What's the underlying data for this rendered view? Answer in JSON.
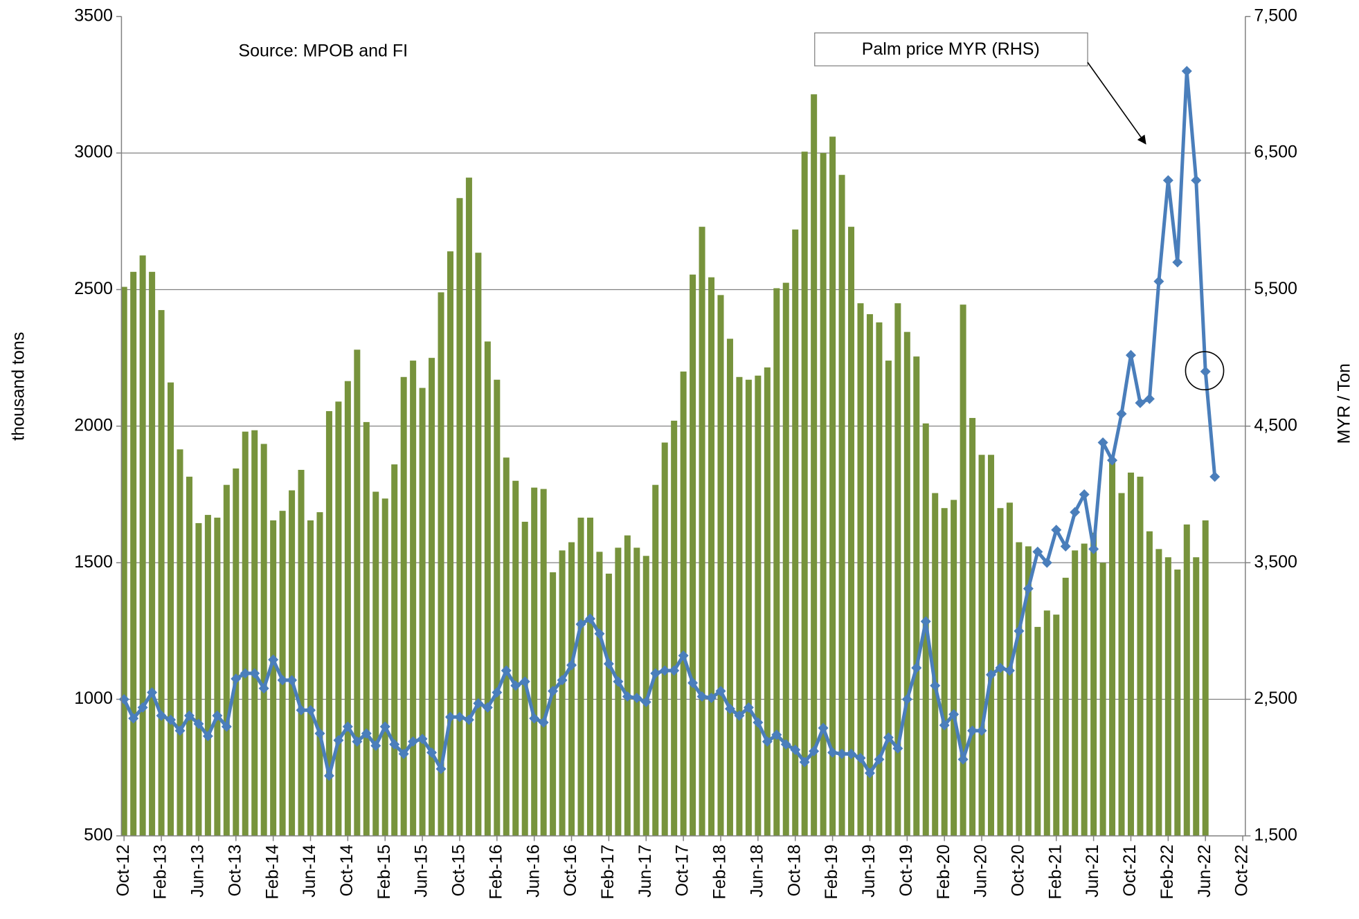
{
  "chart_data": {
    "type": "bar-line",
    "source": "Source: MPOB and FI",
    "callout": "Palm price MYR (RHS)",
    "y_label": "thousand tons",
    "y2_label": "MYR / Ton",
    "categories": [
      "Oct-12",
      null,
      null,
      null,
      "Feb-13",
      null,
      null,
      null,
      "Jun-13",
      null,
      null,
      null,
      "Oct-13",
      null,
      null,
      null,
      "Feb-14",
      null,
      null,
      null,
      "Jun-14",
      null,
      null,
      null,
      "Oct-14",
      null,
      null,
      null,
      "Feb-15",
      null,
      null,
      null,
      "Jun-15",
      null,
      null,
      null,
      "Oct-15",
      null,
      null,
      null,
      "Feb-16",
      null,
      null,
      null,
      "Jun-16",
      null,
      null,
      null,
      "Oct-16",
      null,
      null,
      null,
      "Feb-17",
      null,
      null,
      null,
      "Jun-17",
      null,
      null,
      null,
      "Oct-17",
      null,
      null,
      null,
      "Feb-18",
      null,
      null,
      null,
      "Jun-18",
      null,
      null,
      null,
      "Oct-18",
      null,
      null,
      null,
      "Feb-19",
      null,
      null,
      null,
      "Jun-19",
      null,
      null,
      null,
      "Oct-19",
      null,
      null,
      null,
      "Feb-20",
      null,
      null,
      null,
      "Jun-20",
      null,
      null,
      null,
      "Oct-20",
      null,
      null,
      null,
      "Feb-21",
      null,
      null,
      null,
      "Jun-21",
      null,
      null,
      null,
      "Oct-21",
      null,
      null,
      null,
      "Feb-22",
      null,
      null,
      null,
      "Jun-22",
      null,
      null,
      null,
      "Oct-22"
    ],
    "series": [
      {
        "type": "bar",
        "color": "#77933c",
        "values": [
          2510,
          2565,
          2625,
          2565,
          2425,
          2160,
          1915,
          1815,
          1645,
          1675,
          1665,
          1785,
          1845,
          1980,
          1985,
          1935,
          1655,
          1690,
          1765,
          1840,
          1655,
          1685,
          2055,
          2090,
          2165,
          2280,
          2015,
          1760,
          1735,
          1860,
          2180,
          2240,
          2140,
          2250,
          2490,
          2640,
          2835,
          2910,
          2635,
          2310,
          2170,
          1885,
          1800,
          1650,
          1775,
          1770,
          1465,
          1545,
          1575,
          1665,
          1665,
          1540,
          1460,
          1555,
          1600,
          1555,
          1525,
          1785,
          1940,
          2020,
          2200,
          2555,
          2730,
          2545,
          2480,
          2320,
          2180,
          2170,
          2185,
          2215,
          2505,
          2525,
          2720,
          3005,
          3215,
          3000,
          3060,
          2920,
          2730,
          2450,
          2410,
          2380,
          2240,
          2450,
          2345,
          2255,
          2010,
          1755,
          1700,
          1730,
          2445,
          2030,
          1895,
          1895,
          1700,
          1720,
          1575,
          1560,
          1265,
          1325,
          1310,
          1445,
          1545,
          1570,
          1610,
          1500,
          1875,
          1755,
          1830,
          1815,
          1615,
          1550,
          1520,
          1475,
          1640,
          1520,
          1655,
          null,
          null,
          null,
          null
        ]
      },
      {
        "type": "line",
        "axis": "y2",
        "color": "#4a7ebb",
        "values": [
          2500,
          2360,
          2440,
          2550,
          2380,
          2350,
          2270,
          2380,
          2320,
          2230,
          2380,
          2300,
          2650,
          2690,
          2690,
          2580,
          2790,
          2640,
          2640,
          2420,
          2420,
          2250,
          1940,
          2200,
          2300,
          2190,
          2250,
          2160,
          2300,
          2170,
          2100,
          2190,
          2210,
          2110,
          1990,
          2370,
          2370,
          2350,
          2470,
          2440,
          2550,
          2710,
          2600,
          2630,
          2360,
          2330,
          2560,
          2640,
          2750,
          3050,
          3090,
          2980,
          2760,
          2630,
          2520,
          2510,
          2480,
          2690,
          2710,
          2710,
          2820,
          2620,
          2520,
          2510,
          2560,
          2430,
          2380,
          2440,
          2330,
          2190,
          2240,
          2170,
          2130,
          2040,
          2120,
          2290,
          2110,
          2100,
          2100,
          2070,
          1960,
          2060,
          2220,
          2140,
          2500,
          2730,
          3070,
          2600,
          2310,
          2390,
          2060,
          2270,
          2270,
          2680,
          2730,
          2710,
          3000,
          3310,
          3580,
          3500,
          3740,
          3620,
          3870,
          4000,
          3600,
          4380,
          4250,
          4590,
          5020,
          4670,
          4700,
          5560,
          6300,
          5700,
          7100,
          6300,
          4900,
          4130,
          null,
          null,
          null
        ]
      }
    ],
    "ylim": [
      500,
      3500
    ],
    "yticks": [
      500,
      1000,
      1500,
      2000,
      2500,
      3000,
      3500
    ],
    "y2lim": [
      1500,
      7500
    ],
    "y2ticks": [
      {
        "value": 1500,
        "label": "1,500"
      },
      {
        "value": 2500,
        "label": "2,500"
      },
      {
        "value": 3500,
        "label": "3,500"
      },
      {
        "value": 4500,
        "label": "4,500"
      },
      {
        "value": 5500,
        "label": "5,500"
      },
      {
        "value": 6500,
        "label": "6,500"
      },
      {
        "value": 7500,
        "label": "7,500"
      }
    ],
    "grid": true
  }
}
